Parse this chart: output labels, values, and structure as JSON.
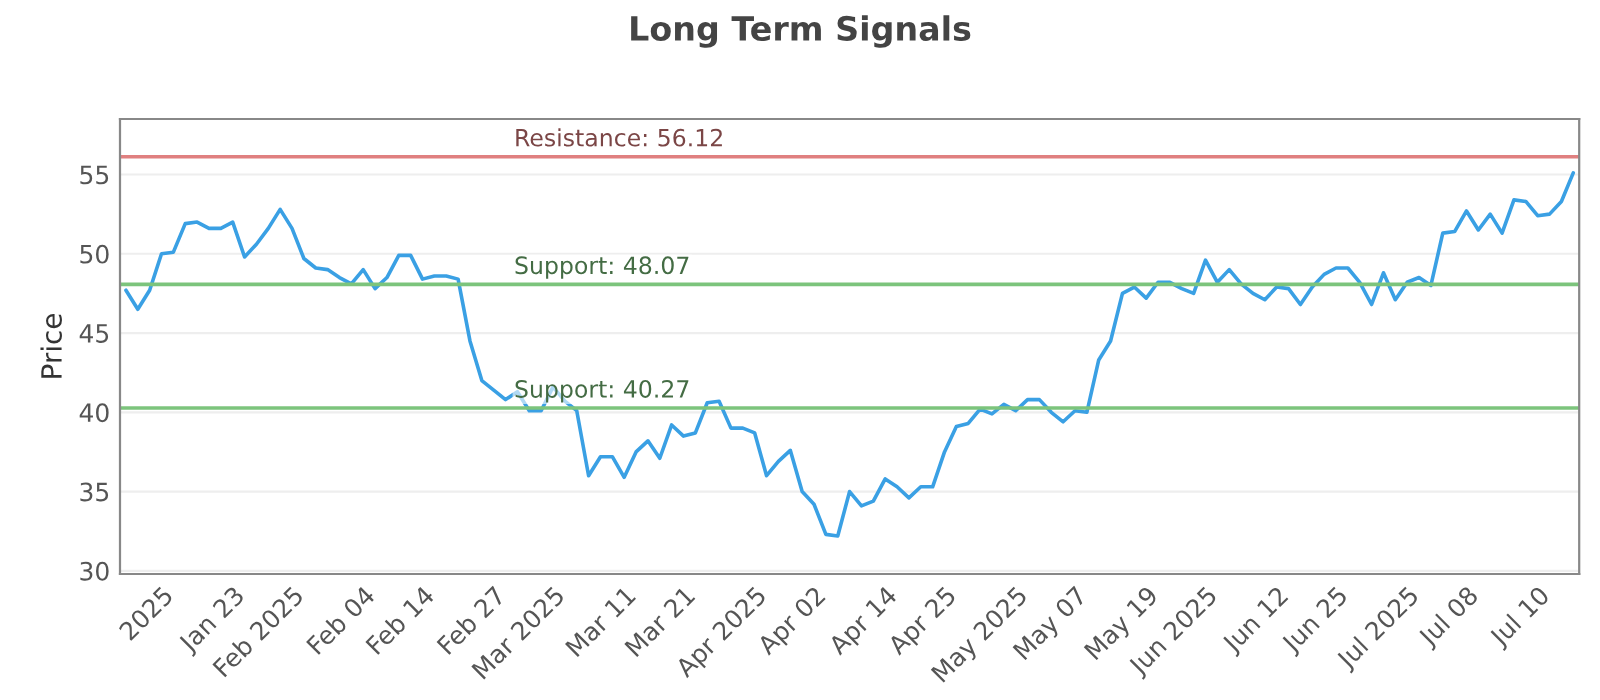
{
  "chart_data": {
    "type": "line",
    "title": "Long Term Signals",
    "ylabel": "Price",
    "categories": [
      null,
      null,
      null,
      "2025",
      null,
      null,
      null,
      null,
      null,
      "Jan 23",
      null,
      null,
      null,
      null,
      "Feb 2025",
      null,
      null,
      null,
      null,
      null,
      "Feb 04",
      null,
      null,
      null,
      null,
      "Feb 14",
      null,
      null,
      null,
      null,
      null,
      "Feb 27",
      null,
      null,
      null,
      null,
      "Mar 2025",
      null,
      null,
      null,
      null,
      null,
      "Mar 11",
      null,
      null,
      null,
      null,
      "Mar 21",
      null,
      null,
      null,
      null,
      null,
      "Apr 2025",
      null,
      null,
      null,
      null,
      "Apr 02",
      null,
      null,
      null,
      null,
      null,
      "Apr 14",
      null,
      null,
      null,
      null,
      "Apr 25",
      null,
      null,
      null,
      null,
      null,
      "May 2025",
      null,
      null,
      null,
      null,
      "May 07",
      null,
      null,
      null,
      null,
      null,
      "May 19",
      null,
      null,
      null,
      null,
      "Jun 2025",
      null,
      null,
      null,
      null,
      null,
      "Jun 12",
      null,
      null,
      null,
      null,
      "Jun 25",
      null,
      null,
      null,
      null,
      null,
      "Jul 2025",
      null,
      null,
      null,
      null,
      "Jul 08",
      null,
      null,
      null,
      null,
      null,
      "Jul 10",
      null,
      null,
      null
    ],
    "series": [
      {
        "color": "#3aa0e4",
        "values": [
          47.7,
          46.5,
          47.7,
          50.0,
          50.1,
          51.9,
          52.0,
          51.6,
          51.6,
          52.0,
          49.8,
          50.6,
          51.6,
          52.8,
          51.6,
          49.7,
          49.1,
          49.0,
          48.5,
          48.1,
          49.0,
          47.8,
          48.5,
          49.9,
          49.9,
          48.4,
          48.6,
          48.6,
          48.4,
          44.5,
          42.0,
          41.4,
          40.8,
          41.3,
          40.1,
          40.1,
          41.6,
          40.7,
          40.1,
          36.0,
          37.2,
          37.2,
          35.9,
          37.5,
          38.2,
          37.1,
          39.2,
          38.5,
          38.7,
          40.6,
          40.7,
          39.0,
          39.0,
          38.7,
          36.0,
          36.9,
          37.6,
          35.0,
          34.2,
          32.3,
          32.2,
          35.0,
          34.1,
          34.4,
          35.8,
          35.3,
          34.6,
          35.3,
          35.3,
          37.5,
          39.1,
          39.3,
          40.2,
          39.9,
          40.5,
          40.1,
          40.8,
          40.8,
          40.0,
          39.4,
          40.1,
          40.0,
          43.3,
          44.5,
          47.5,
          47.9,
          47.2,
          48.2,
          48.2,
          47.8,
          47.5,
          49.6,
          48.2,
          49.0,
          48.1,
          47.5,
          47.1,
          47.9,
          47.8,
          46.8,
          47.9,
          48.7,
          49.1,
          49.1,
          48.2,
          46.8,
          48.8,
          47.1,
          48.2,
          48.5,
          48.0,
          51.3,
          51.4,
          52.7,
          51.5,
          52.5,
          51.3,
          53.4,
          53.3,
          52.4,
          52.5,
          53.3,
          55.1
        ]
      }
    ],
    "ylim": [
      29.8,
      58.5
    ],
    "yticks": [
      30,
      35,
      40,
      45,
      50,
      55
    ],
    "grid": "y",
    "marker": "none",
    "line_style": "solid",
    "ref_lines": [
      {
        "axis": "y",
        "value": 56.12,
        "label": "Resistance: 56.12",
        "color": "#e08080"
      },
      {
        "axis": "y",
        "value": 48.07,
        "label": "Support: 48.07",
        "color": "#7cc47c"
      },
      {
        "axis": "y",
        "value": 40.27,
        "label": "Support: 40.27",
        "color": "#7cc47c"
      }
    ]
  }
}
